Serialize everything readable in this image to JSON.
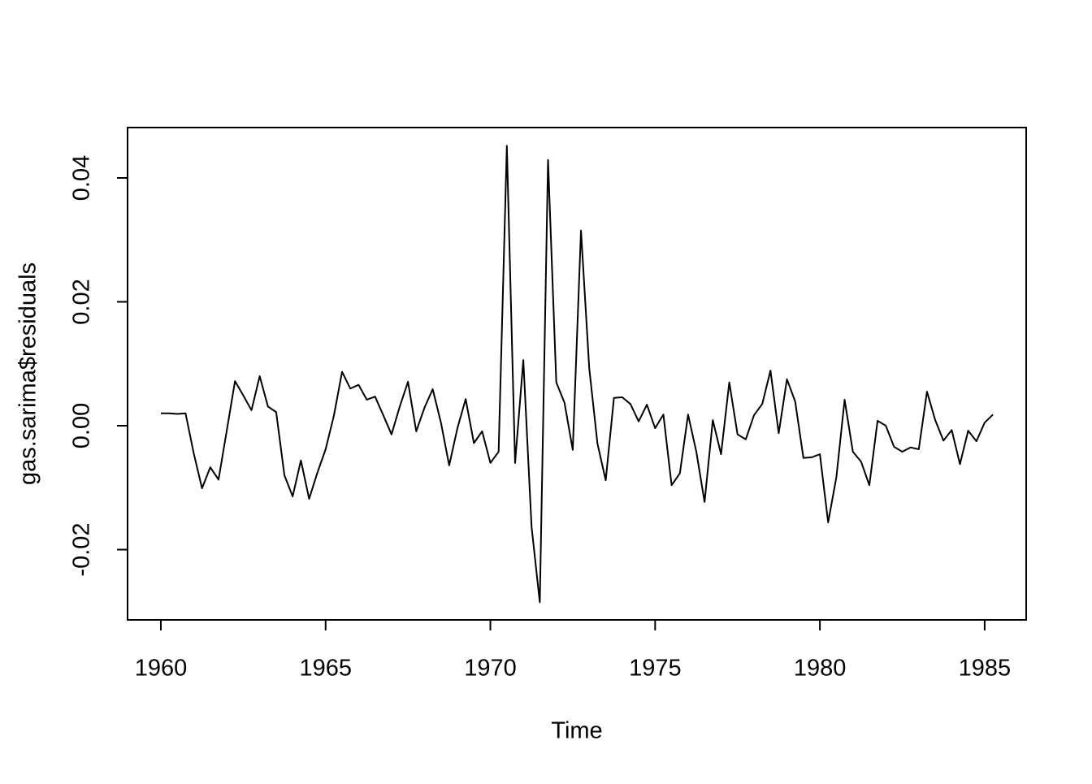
{
  "chart_data": {
    "type": "line",
    "xlabel": "Time",
    "ylabel": "gas.sarima$residuals",
    "x": [
      1960,
      1960.25,
      1960.5,
      1960.75,
      1961,
      1961.25,
      1961.5,
      1961.75,
      1962,
      1962.25,
      1962.5,
      1962.75,
      1963,
      1963.25,
      1963.5,
      1963.75,
      1964,
      1964.25,
      1964.5,
      1964.75,
      1965,
      1965.25,
      1965.5,
      1965.75,
      1966,
      1966.25,
      1966.5,
      1966.75,
      1967,
      1967.25,
      1967.5,
      1967.75,
      1968,
      1968.25,
      1968.5,
      1968.75,
      1969,
      1969.25,
      1969.5,
      1969.75,
      1970,
      1970.25,
      1970.5,
      1970.75,
      1971,
      1971.25,
      1971.5,
      1971.75,
      1972,
      1972.25,
      1972.5,
      1972.75,
      1973,
      1973.25,
      1973.5,
      1973.75,
      1974,
      1974.25,
      1974.5,
      1974.75,
      1975,
      1975.25,
      1975.5,
      1975.75,
      1976,
      1976.25,
      1976.5,
      1976.75,
      1977,
      1977.25,
      1977.5,
      1977.75,
      1978,
      1978.25,
      1978.5,
      1978.75,
      1979,
      1979.25,
      1979.5,
      1979.75,
      1980,
      1980.25,
      1980.5,
      1980.75,
      1981,
      1981.25,
      1981.5,
      1981.75,
      1982,
      1982.25,
      1982.5,
      1982.75,
      1983,
      1983.25,
      1983.5,
      1983.75,
      1984,
      1984.25,
      1984.5,
      1984.75,
      1985,
      1985.25
    ],
    "values": [
      0.002,
      0.002,
      0.0019,
      0.002,
      -0.0045,
      -0.0101,
      -0.0067,
      -0.0087,
      -0.0008,
      0.0072,
      0.0049,
      0.0025,
      0.008,
      0.0031,
      0.0022,
      -0.008,
      -0.0114,
      -0.0056,
      -0.0118,
      -0.0076,
      -0.0038,
      0.0016,
      0.0087,
      0.006,
      0.0066,
      0.0042,
      0.0047,
      0.0017,
      -0.0014,
      0.0031,
      0.0071,
      -0.0009,
      0.0029,
      0.0059,
      0.0005,
      -0.0064,
      -0.0004,
      0.0043,
      -0.0028,
      -0.0009,
      -0.006,
      -0.0042,
      0.0452,
      -0.006,
      0.0106,
      -0.0163,
      -0.0285,
      0.0429,
      0.007,
      0.0037,
      -0.0039,
      0.0315,
      0.0093,
      -0.0029,
      -0.0088,
      0.0045,
      0.0046,
      0.0035,
      0.0007,
      0.0034,
      -0.0004,
      0.0018,
      -0.0096,
      -0.0077,
      0.0018,
      -0.0042,
      -0.0123,
      0.0009,
      -0.0046,
      0.007,
      -0.0014,
      -0.0022,
      0.0017,
      0.0035,
      0.0089,
      -0.0012,
      0.0075,
      0.0039,
      -0.0052,
      -0.0051,
      -0.0046,
      -0.0156,
      -0.0083,
      0.0042,
      -0.0042,
      -0.0058,
      -0.0096,
      0.0008,
      0,
      -0.0034,
      -0.0042,
      -0.0035,
      -0.0038,
      0.0055,
      0.0009,
      -0.0024,
      -0.0007,
      -0.0062,
      -0.0008,
      -0.0025,
      0.0005,
      0.0018
    ],
    "color": "#000000",
    "xlim": [
      1958.99,
      1986.26
    ],
    "xticks": [
      1960,
      1965,
      1970,
      1975,
      1980,
      1985
    ],
    "ylim": [
      -0.03134,
      0.04813
    ],
    "yticks": [
      -0.02,
      {
        "value": 0,
        "label": "0.00"
      },
      0.02,
      0.04
    ]
  }
}
